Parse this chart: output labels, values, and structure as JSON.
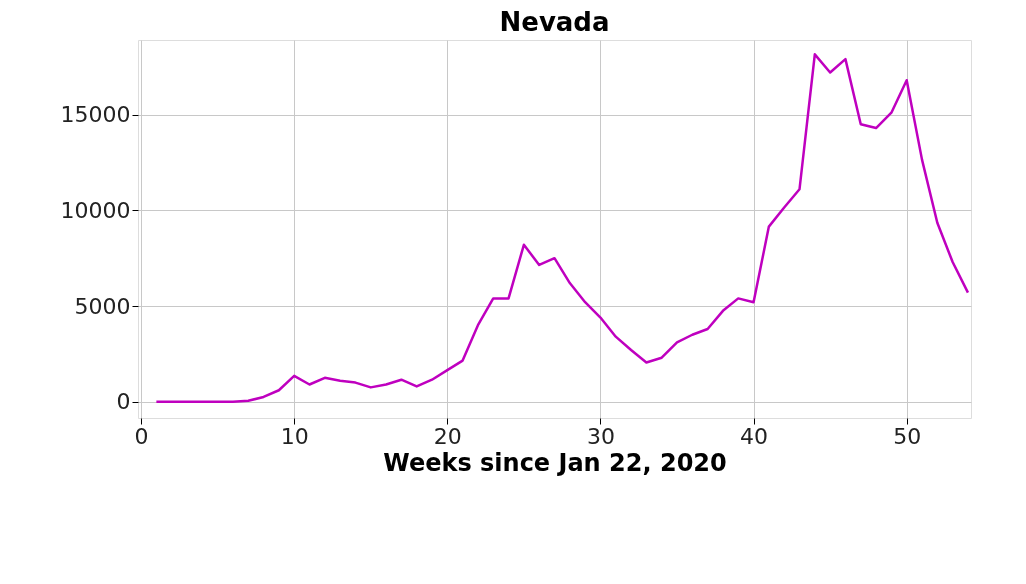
{
  "chart_data": {
    "type": "line",
    "title": "Nevada",
    "xlabel": "Weeks since Jan 22, 2020",
    "x": [
      1,
      2,
      3,
      4,
      5,
      6,
      7,
      8,
      9,
      10,
      11,
      12,
      13,
      14,
      15,
      16,
      17,
      18,
      19,
      20,
      21,
      22,
      23,
      24,
      25,
      26,
      27,
      28,
      29,
      30,
      31,
      32,
      33,
      34,
      35,
      36,
      37,
      38,
      39,
      40,
      41,
      42,
      43,
      44,
      45,
      46,
      47,
      48,
      49,
      50,
      51,
      52,
      53,
      54
    ],
    "series": [
      {
        "color": "#bf00bf",
        "values": [
          0,
          0,
          0,
          0,
          0,
          0,
          50,
          250,
          600,
          1350,
          900,
          1250,
          1100,
          1000,
          750,
          900,
          1150,
          800,
          1150,
          1650,
          2150,
          4000,
          5400,
          5400,
          8200,
          7150,
          7500,
          6200,
          5200,
          4400,
          3400,
          2700,
          2050,
          2300,
          3100,
          3500,
          3800,
          4750,
          5400,
          5200,
          9150,
          10150,
          11100,
          18150,
          17200,
          17900,
          14500,
          14300,
          15100,
          16800,
          12650,
          9350,
          7300,
          5700
        ]
      }
    ],
    "xlim": [
      -0.2,
      54.2
    ],
    "ylim": [
      -850,
      18900
    ],
    "xticks": [
      0,
      10,
      20,
      30,
      40,
      50
    ],
    "yticks": [
      0,
      5000,
      10000,
      15000
    ],
    "grid": true,
    "marker": "none",
    "line_style": "solid"
  }
}
